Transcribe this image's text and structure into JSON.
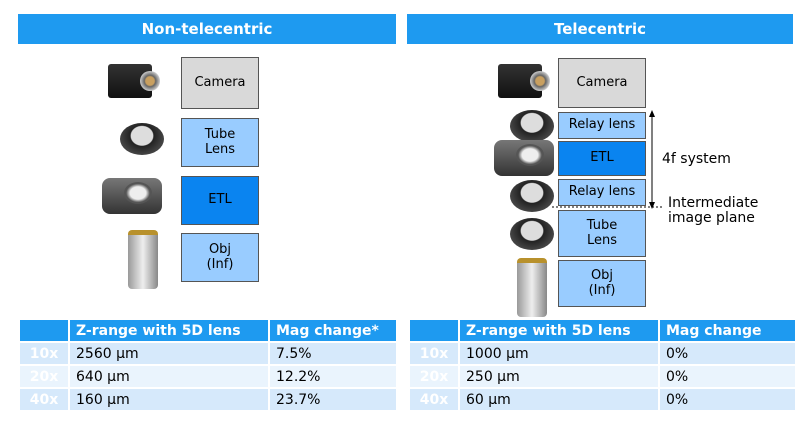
{
  "left": {
    "title": "Non-telecentric",
    "blocks": [
      "Camera",
      "Tube\nLens",
      "ETL",
      "Obj\n(Inf)"
    ],
    "table": {
      "headers": [
        "",
        "Z-range with 5D lens",
        "Mag change*"
      ],
      "rows": [
        [
          "10x",
          "2560 µm",
          "7.5%"
        ],
        [
          "20x",
          "640 µm",
          "12.2%"
        ],
        [
          "40x",
          "160 µm",
          "23.7%"
        ]
      ]
    }
  },
  "right": {
    "title": "Telecentric",
    "blocks": [
      "Camera",
      "Relay lens",
      "ETL",
      "Relay lens",
      "Tube\nLens",
      "Obj\n(Inf)"
    ],
    "annot_4f": "4f system",
    "annot_plane": "Intermediate\nimage plane",
    "table": {
      "headers": [
        "",
        "Z-range with 5D lens",
        "Mag change"
      ],
      "rows": [
        [
          "10x",
          "1000 µm",
          "0%"
        ],
        [
          "20x",
          "250 µm",
          "0%"
        ],
        [
          "40x",
          "60 µm",
          "0%"
        ]
      ]
    }
  },
  "colors": {
    "header": "#1e9af0",
    "light_block": "#99ccff",
    "etl_block": "#0a84f0",
    "camera_block": "#d9d9d9"
  }
}
